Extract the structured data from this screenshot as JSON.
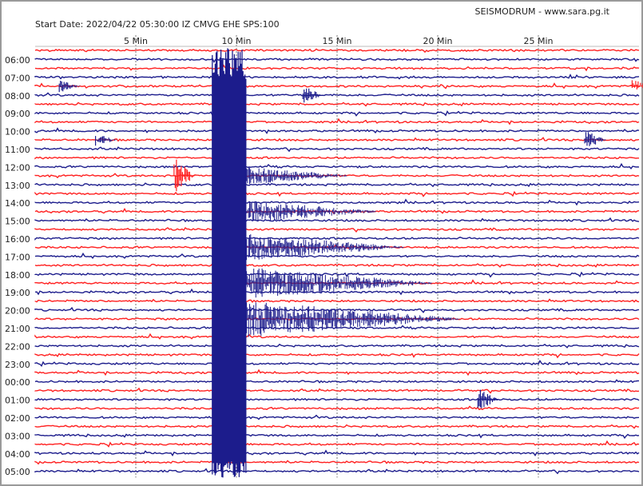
{
  "header": {
    "start_label": "Start Date: 2022/04/22 05:30:00 IZ CMVG EHE SPS:100",
    "site_label": "SEISMODRUM - www.sara.pg.it"
  },
  "chart_data": {
    "type": "line",
    "title": "SEISMODRUM - www.sara.pg.it",
    "subtitle": "Start Date: 2022/04/22 05:30:00 IZ CMVG EHE SPS:100",
    "x_ticks": [
      "5 Min",
      "10 Min",
      "15 Min",
      "20 Min",
      "25 Min"
    ],
    "x_tick_values": [
      5,
      10,
      15,
      20,
      25
    ],
    "x_range": [
      0,
      30
    ],
    "row_labels": [
      "06:00",
      "07:00",
      "08:00",
      "09:00",
      "10:00",
      "11:00",
      "12:00",
      "13:00",
      "14:00",
      "15:00",
      "16:00",
      "17:00",
      "18:00",
      "19:00",
      "20:00",
      "21:00",
      "22:00",
      "23:00",
      "00:00",
      "01:00",
      "02:00",
      "03:00",
      "04:00",
      "05:00"
    ],
    "traces_per_hour": 2,
    "trace_minutes": 30,
    "grid": true,
    "colors": {
      "trace_a": "#1c1c8c",
      "trace_b": "#ff2020",
      "grid": "#777777",
      "border": "#9a9a9a"
    }
  }
}
